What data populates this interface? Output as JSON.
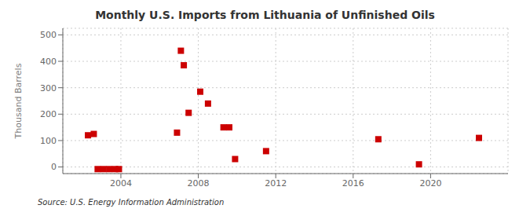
{
  "chart_data": {
    "type": "scatter",
    "title": "Monthly U.S. Imports from Lithuania of Unfinished Oils",
    "y_label": "Thousand Barrels",
    "annotations": [
      "Source: U.S. Energy Information Administration"
    ],
    "x": [
      2002.3,
      2002.6,
      2002.8,
      2003.1,
      2003.4,
      2003.7,
      2003.9,
      2006.9,
      2007.1,
      2007.25,
      2007.5,
      2008.1,
      2008.5,
      2009.3,
      2009.6,
      2009.9,
      2011.5,
      2017.3,
      2019.4,
      2022.5
    ],
    "values": [
      120,
      125,
      -8,
      -8,
      -8,
      -8,
      -8,
      130,
      440,
      385,
      205,
      285,
      240,
      150,
      150,
      30,
      60,
      105,
      10,
      110
    ],
    "color": "#cc0000",
    "marker": "square",
    "xlim": [
      2001.0,
      2024.0
    ],
    "ylim": [
      -25,
      525
    ],
    "xticks": [
      2004,
      2008,
      2012,
      2016,
      2020
    ],
    "yticks": [
      0,
      100,
      200,
      300,
      400,
      500
    ],
    "grid": true
  }
}
